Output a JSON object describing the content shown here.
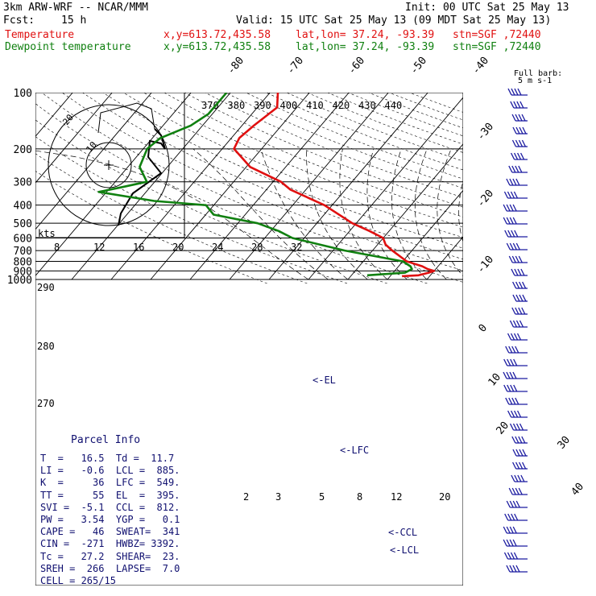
{
  "header": {
    "model": "3km ARW-WRF -- NCAR/MMM",
    "init": "Init: 00 UTC Sat 25 May 13",
    "fcst_label": "Fcst:",
    "fcst_value": "15 h",
    "valid": "Valid: 15 UTC Sat 25 May 13 (09 MDT Sat 25 May 13)",
    "temperature_label": "Temperature",
    "dewpoint_label": "Dewpoint temperature",
    "xy": "x,y=613.72,435.58",
    "latlon": "lat,lon= 37.24, -93.39",
    "stn": "stn=SGF ,72440"
  },
  "chart_data": {
    "type": "line",
    "title": "",
    "y_axis_pressure_hpa": [
      100,
      200,
      300,
      400,
      500,
      600,
      700,
      800,
      900,
      1000
    ],
    "pressure_tick_labels": [
      "100",
      "200",
      "300",
      "400",
      "500",
      "600",
      "700",
      "800",
      "900",
      "1000"
    ],
    "isotherm_labels": [
      "-80",
      "-70",
      "-60",
      "-50",
      "-40",
      "-30",
      "-20",
      "-10",
      "0",
      "10",
      "20",
      "30",
      "40"
    ],
    "theta_labels": [
      "370",
      "380",
      "390",
      "400",
      "410",
      "420",
      "430",
      "440"
    ],
    "theta_left_labels": [
      "290",
      "280",
      "270"
    ],
    "wind_speed_axis_label": "kts",
    "wind_speed_labels": [
      "8",
      "12",
      "16",
      "20",
      "24",
      "28",
      "32"
    ],
    "mixing_ratio_labels": [
      "2",
      "3",
      "5",
      "8",
      "12",
      "20"
    ],
    "hodograph_ring_labels": [
      "20",
      "10"
    ],
    "level_markers": [
      "EL",
      "LFC",
      "CCL",
      "LCL"
    ],
    "wind_barb_title": "Full barb:",
    "wind_barb_unit": "5 m s-1",
    "series": [
      {
        "name": "Temperature",
        "color": "#e01010",
        "points": [
          [
            100,
            -58
          ],
          [
            120,
            -55
          ],
          [
            150,
            -57
          ],
          [
            175,
            -58
          ],
          [
            200,
            -57
          ],
          [
            250,
            -49
          ],
          [
            300,
            -38
          ],
          [
            330,
            -34
          ],
          [
            400,
            -22
          ],
          [
            500,
            -11
          ],
          [
            550,
            -5
          ],
          [
            600,
            0
          ],
          [
            650,
            2
          ],
          [
            700,
            5
          ],
          [
            800,
            11
          ],
          [
            850,
            16
          ],
          [
            880,
            18
          ],
          [
            900,
            20
          ],
          [
            920,
            19
          ],
          [
            950,
            17
          ],
          [
            960,
            13
          ]
        ]
      },
      {
        "name": "Dewpoint temperature",
        "color": "#108010",
        "points": [
          [
            100,
            -71
          ],
          [
            130,
            -71
          ],
          [
            150,
            -73
          ],
          [
            175,
            -78
          ],
          [
            200,
            -79
          ],
          [
            250,
            -77
          ],
          [
            300,
            -72
          ],
          [
            320,
            -77
          ],
          [
            340,
            -82
          ],
          [
            380,
            -66
          ],
          [
            400,
            -52
          ],
          [
            450,
            -48
          ],
          [
            500,
            -35
          ],
          [
            550,
            -28
          ],
          [
            600,
            -23
          ],
          [
            700,
            -7
          ],
          [
            800,
            10
          ],
          [
            850,
            13
          ],
          [
            880,
            14
          ],
          [
            920,
            13
          ],
          [
            950,
            4
          ]
        ]
      }
    ]
  },
  "parcel": {
    "title": "Parcel Info",
    "lines": [
      "T  =   16.5  Td =  11.7",
      "LI =   -0.6  LCL =  885.",
      "K  =     36  LFC =  549.",
      "TT =     55  EL  =  395.",
      "SVI =  -5.1  CCL =  812.",
      "PW =   3.54  YGP =   0.1",
      "CAPE =   46  SWEAT=  341",
      "CIN =  -271  HWBZ= 3392.",
      "Tc =   27.2  SHEAR=  23.",
      "SREH =  266  LAPSE=  7.0",
      "CELL = 265/15"
    ]
  },
  "colors": {
    "temperature": "#e01010",
    "dewpoint": "#108010",
    "parcel_text": "#101070",
    "barbs": "#1a1aa0"
  }
}
